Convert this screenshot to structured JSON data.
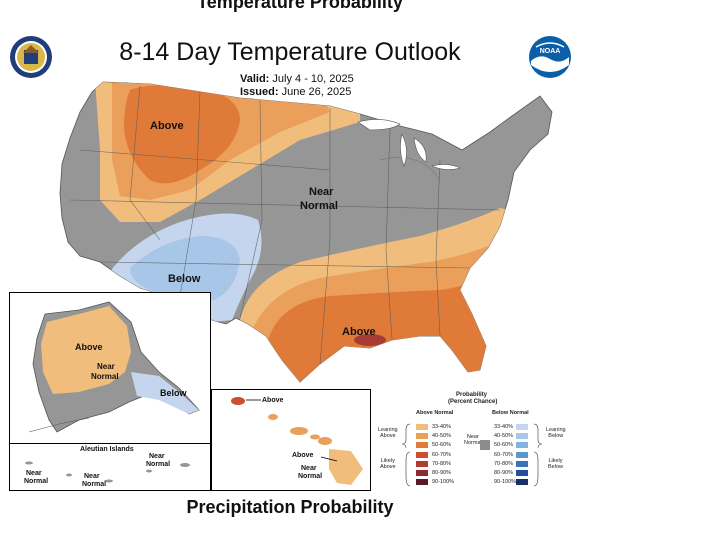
{
  "header": {
    "top_cut": "Temperature Probability",
    "title": "8-14 Day Temperature Outlook",
    "valid_label": "Valid:",
    "valid_dates": "July 4 - 10, 2025",
    "issued_label": "Issued:",
    "issued_date": "June 26, 2025"
  },
  "map_labels": {
    "conus_above_nw": "Above",
    "conus_near_normal_1": "Near",
    "conus_near_normal_2": "Normal",
    "conus_below": "Below",
    "conus_above_se": "Above",
    "alaska_above": "Above",
    "alaska_near_1": "Near",
    "alaska_near_2": "Normal",
    "alaska_below": "Below",
    "aleutian_title": "Aleutian Islands",
    "aleutian_near_a1": "Near",
    "aleutian_near_a2": "Normal",
    "aleutian_near_b1": "Near",
    "aleutian_near_b2": "Normal",
    "aleutian_near_c1": "Near",
    "aleutian_near_c2": "Normal",
    "hawaii_above_1": "Above",
    "hawaii_above_2": "Above",
    "hawaii_near_1": "Near",
    "hawaii_near_2": "Normal"
  },
  "legend": {
    "title_1": "Probability",
    "title_2": "(Percent Chance)",
    "above_header": "Above Normal",
    "below_header": "Below Normal",
    "near_label_1": "Near",
    "near_label_2": "Normal",
    "leaning_above_1": "Leaning",
    "leaning_above_2": "Above",
    "likely_above_1": "Likely",
    "likely_above_2": "Above",
    "leaning_below_1": "Leaning",
    "leaning_below_2": "Below",
    "likely_below_1": "Likely",
    "likely_below_2": "Below",
    "above_bins": [
      "33-40%",
      "40-50%",
      "50-60%",
      "60-70%",
      "70-80%",
      "80-90%",
      "90-100%"
    ],
    "below_bins": [
      "33-40%",
      "40-50%",
      "50-60%",
      "60-70%",
      "70-80%",
      "80-90%",
      "90-100%"
    ],
    "above_colors": [
      "#f0bd7c",
      "#eaa05a",
      "#e07a38",
      "#cc5030",
      "#b33a30",
      "#8c2a2e",
      "#5a1a24"
    ],
    "below_colors": [
      "#c6d5ee",
      "#a8c6e8",
      "#84b1dd",
      "#5e96cc",
      "#3a74b5",
      "#23509a",
      "#1a2e6a"
    ],
    "near_color": "#8c8c8c"
  },
  "colors": {
    "near_normal": "#969696",
    "above_33": "#f0bd7c",
    "above_40": "#eaa05a",
    "above_50": "#e07a38",
    "above_60": "#cc5030",
    "below_33": "#c6d5ee",
    "below_40": "#a8c6e8"
  },
  "icons": {
    "left_logo": "doc-seal-icon",
    "right_logo": "noaa-logo-icon"
  },
  "footer": {
    "next_section": "Precipitation Probability"
  }
}
